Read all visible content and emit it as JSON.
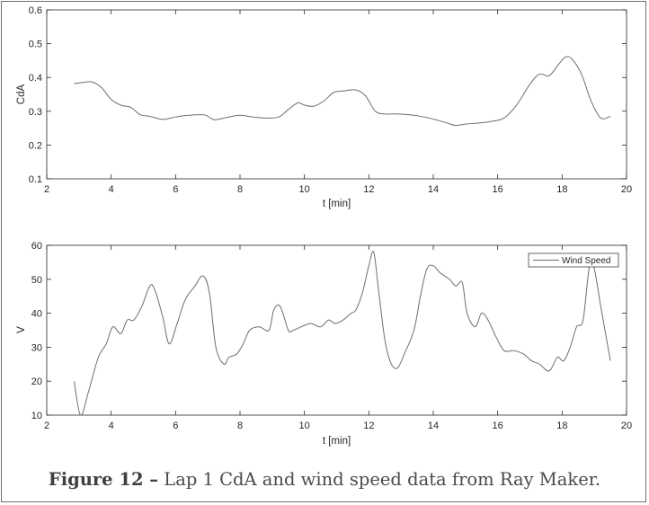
{
  "chart_data": [
    {
      "type": "line",
      "title": "",
      "xlabel": "t [min]",
      "ylabel": "CdA",
      "xlim": [
        2,
        20
      ],
      "ylim": [
        0.1,
        0.6
      ],
      "xticks": [
        2,
        4,
        6,
        8,
        10,
        12,
        14,
        16,
        18,
        20
      ],
      "yticks": [
        0.1,
        0.2,
        0.3,
        0.4,
        0.5,
        0.6
      ],
      "ytick_labels": [
        "0.1",
        "0.2",
        "0.3",
        "0.4",
        "0.5",
        "0.6"
      ],
      "grid": false,
      "series": [
        {
          "color": "#6e6e6e",
          "x": [
            2.85,
            3.1,
            3.4,
            3.7,
            4.0,
            4.3,
            4.6,
            4.9,
            5.2,
            5.6,
            6.0,
            6.4,
            6.9,
            7.2,
            7.6,
            8.0,
            8.4,
            8.8,
            9.2,
            9.5,
            9.8,
            10.0,
            10.3,
            10.6,
            10.9,
            11.2,
            11.6,
            11.9,
            12.2,
            12.5,
            12.8,
            13.2,
            13.6,
            14.0,
            14.4,
            14.7,
            15.0,
            15.4,
            15.8,
            16.2,
            16.6,
            17.0,
            17.3,
            17.6,
            17.9,
            18.1,
            18.3,
            18.6,
            18.9,
            19.2,
            19.5
          ],
          "y": [
            0.382,
            0.385,
            0.387,
            0.37,
            0.335,
            0.318,
            0.312,
            0.29,
            0.285,
            0.276,
            0.283,
            0.288,
            0.289,
            0.275,
            0.282,
            0.288,
            0.283,
            0.28,
            0.283,
            0.305,
            0.325,
            0.318,
            0.315,
            0.33,
            0.355,
            0.36,
            0.363,
            0.345,
            0.3,
            0.292,
            0.292,
            0.29,
            0.285,
            0.277,
            0.266,
            0.258,
            0.262,
            0.265,
            0.27,
            0.28,
            0.32,
            0.38,
            0.41,
            0.405,
            0.44,
            0.46,
            0.455,
            0.41,
            0.33,
            0.28,
            0.285
          ]
        }
      ]
    },
    {
      "type": "line",
      "title": "",
      "xlabel": "t [min]",
      "ylabel": "V",
      "xlim": [
        2,
        20
      ],
      "ylim": [
        10,
        60
      ],
      "xticks": [
        2,
        4,
        6,
        8,
        10,
        12,
        14,
        16,
        18,
        20
      ],
      "yticks": [
        10,
        20,
        30,
        40,
        50,
        60
      ],
      "grid": false,
      "legend": "top-right",
      "series": [
        {
          "name": "Wind Speed",
          "color": "#6e6e6e",
          "x": [
            2.85,
            3.05,
            3.3,
            3.6,
            3.85,
            4.05,
            4.3,
            4.5,
            4.7,
            4.95,
            5.2,
            5.35,
            5.6,
            5.8,
            6.05,
            6.3,
            6.6,
            6.85,
            7.05,
            7.25,
            7.5,
            7.65,
            7.9,
            8.1,
            8.3,
            8.6,
            8.9,
            9.05,
            9.25,
            9.5,
            9.65,
            9.9,
            10.2,
            10.5,
            10.75,
            10.95,
            11.2,
            11.45,
            11.6,
            11.8,
            12.0,
            12.15,
            12.3,
            12.5,
            12.7,
            12.9,
            13.1,
            13.4,
            13.6,
            13.8,
            14.0,
            14.2,
            14.5,
            14.7,
            14.9,
            15.05,
            15.3,
            15.5,
            15.7,
            15.95,
            16.2,
            16.5,
            16.8,
            17.05,
            17.3,
            17.6,
            17.85,
            18.05,
            18.25,
            18.45,
            18.65,
            18.85,
            19.0,
            19.2,
            19.5
          ],
          "y": [
            20,
            10,
            17,
            27,
            31,
            36,
            34,
            38,
            38,
            42,
            48,
            47,
            39,
            31,
            37,
            44,
            48,
            51,
            46,
            30,
            25,
            27,
            28,
            31,
            35,
            36,
            35,
            41,
            42,
            35,
            35,
            36,
            37,
            36,
            38,
            37,
            38,
            40,
            41,
            46,
            54,
            58,
            47,
            32,
            25,
            24,
            28,
            35,
            45,
            53,
            54,
            52,
            50,
            48,
            49,
            40,
            36,
            40,
            38,
            33,
            29,
            29,
            28,
            26,
            25,
            23,
            27,
            26,
            30,
            36,
            38,
            54,
            53,
            42,
            26
          ]
        }
      ]
    }
  ],
  "caption": {
    "figure_label": "Figure 12 –",
    "text": "Lap 1 CdA and wind speed data from Ray Maker."
  }
}
